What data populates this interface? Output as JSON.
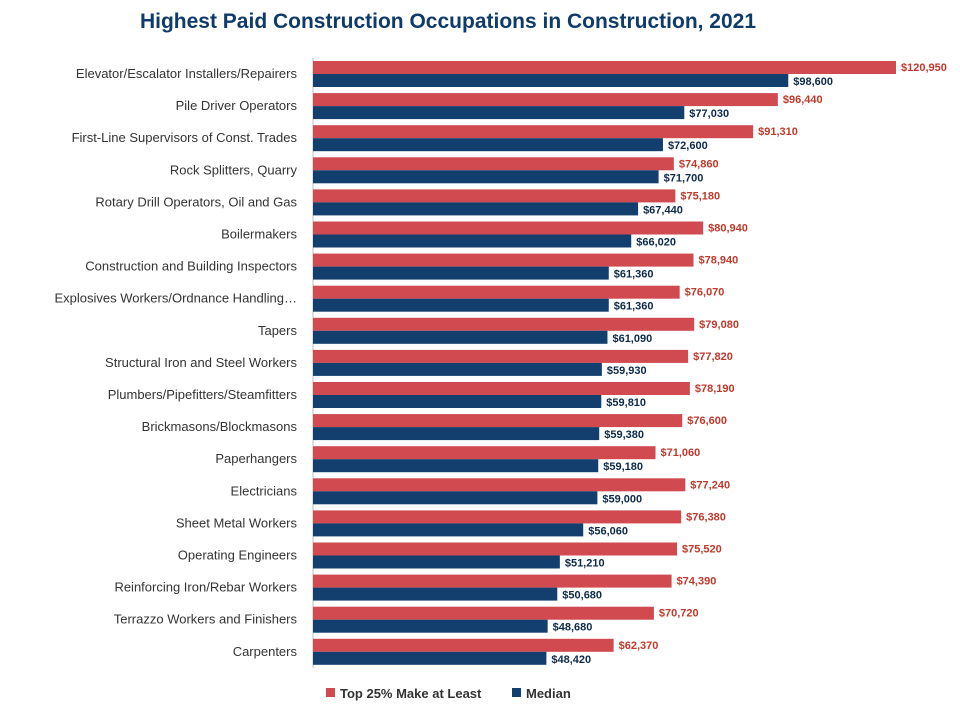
{
  "chart_data": {
    "type": "bar",
    "orientation": "horizontal",
    "title": "Highest Paid Construction Occupations in Construction, 2021",
    "categories": [
      "Elevator/Escalator Installers/Repairers",
      "Pile Driver Operators",
      "First-Line Supervisors of Const. Trades",
      "Rock Splitters, Quarry",
      "Rotary Drill Operators, Oil and Gas",
      "Boilermakers",
      "Construction and Building Inspectors",
      "Explosives Workers/Ordnance Handling…",
      "Tapers",
      "Structural Iron and Steel Workers",
      "Plumbers/Pipefitters/Steamfitters",
      "Brickmasons/Blockmasons",
      "Paperhangers",
      "Electricians",
      "Sheet Metal Workers",
      "Operating Engineers",
      "Reinforcing Iron/Rebar Workers",
      "Terrazzo Workers and Finishers",
      "Carpenters"
    ],
    "series": [
      {
        "name": "Top 25% Make at Least",
        "color": "#d04a50",
        "label_color": "#c0392b",
        "values": [
          120950,
          96440,
          91310,
          74860,
          75180,
          80940,
          78940,
          76070,
          79080,
          77820,
          78190,
          76600,
          71060,
          77240,
          76380,
          75520,
          74390,
          70720,
          62370
        ],
        "labels": [
          "$120,950",
          "$96,440",
          "$91,310",
          "$74,860",
          "$75,180",
          "$80,940",
          "$78,940",
          "$76,070",
          "$79,080",
          "$77,820",
          "$78,190",
          "$76,600",
          "$71,060",
          "$77,240",
          "$76,380",
          "$75,520",
          "$74,390",
          "$70,720",
          "$62,370"
        ]
      },
      {
        "name": "Median",
        "color": "#123f6e",
        "label_color": "#0d2a4a",
        "values": [
          98600,
          77030,
          72600,
          71700,
          67440,
          66020,
          61360,
          61360,
          61090,
          59930,
          59810,
          59380,
          59180,
          59000,
          56060,
          51210,
          50680,
          48680,
          48420
        ],
        "labels": [
          "$98,600",
          "$77,030",
          "$72,600",
          "$71,700",
          "$67,440",
          "$66,020",
          "$61,360",
          "$61,360",
          "$61,090",
          "$59,930",
          "$59,810",
          "$59,380",
          "$59,180",
          "$59,000",
          "$56,060",
          "$51,210",
          "$50,680",
          "$48,680",
          "$48,420"
        ]
      }
    ],
    "xlim": [
      0,
      120950
    ],
    "grid": false,
    "legend_position": "bottom"
  }
}
